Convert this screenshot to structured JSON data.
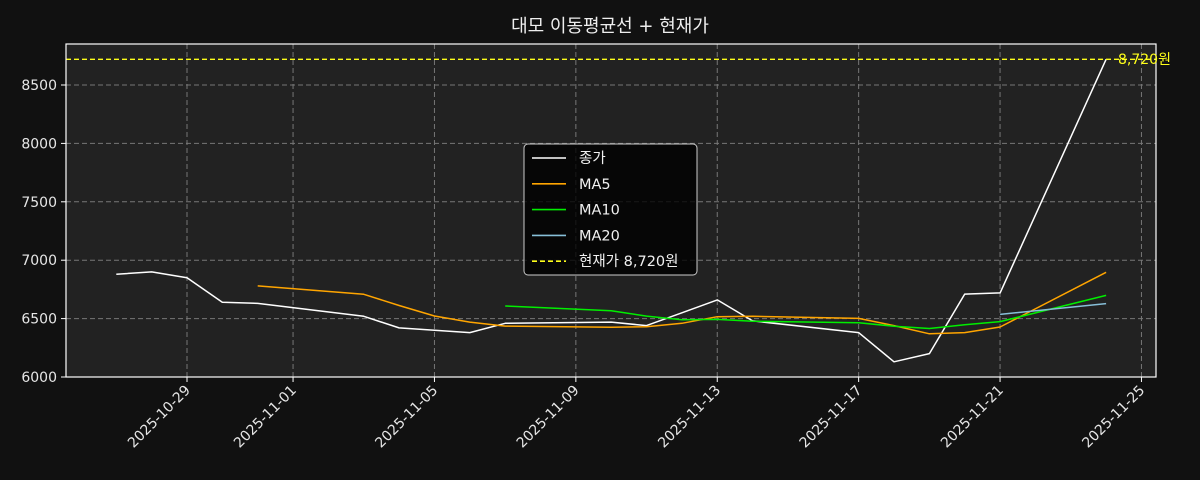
{
  "chart_data": {
    "type": "line",
    "title": "대모 이동평균선 + 현재가",
    "xlabel": "",
    "ylabel": "",
    "ylim": [
      5995,
      8850
    ],
    "xlim": [
      "2025-10-23",
      "2025-11-25"
    ],
    "grid": true,
    "legend_position": "center",
    "yticks": [
      6000,
      6500,
      7000,
      7500,
      8000,
      8500
    ],
    "xticks": [
      "2025-10-29",
      "2025-11-01",
      "2025-11-05",
      "2025-11-09",
      "2025-11-13",
      "2025-11-17",
      "2025-11-21",
      "2025-11-25"
    ],
    "x": [
      "2025-10-27",
      "2025-10-28",
      "2025-10-29",
      "2025-10-30",
      "2025-10-31",
      "2025-11-03",
      "2025-11-04",
      "2025-11-05",
      "2025-11-06",
      "2025-11-07",
      "2025-11-10",
      "2025-11-11",
      "2025-11-12",
      "2025-11-13",
      "2025-11-14",
      "2025-11-17",
      "2025-11-18",
      "2025-11-19",
      "2025-11-20",
      "2025-11-21",
      "2025-11-24"
    ],
    "series": [
      {
        "name": "종가",
        "color": "#ffffff",
        "values": [
          6880,
          6900,
          6850,
          6640,
          6630,
          6520,
          6420,
          6400,
          6380,
          6460,
          6470,
          6440,
          6550,
          6660,
          6480,
          6380,
          6130,
          6200,
          6710,
          6720,
          8720
        ]
      },
      {
        "name": "MA5",
        "color": "#ffa500",
        "values": [
          null,
          null,
          null,
          null,
          6780,
          6708,
          6612,
          6522,
          6470,
          6436,
          6426,
          6430,
          6460,
          6516,
          6520,
          6502,
          6440,
          6370,
          6380,
          6428,
          6896
        ]
      },
      {
        "name": "MA10",
        "color": "#00ee00",
        "values": [
          null,
          null,
          null,
          null,
          null,
          null,
          null,
          null,
          null,
          6608,
          6567,
          6521,
          6491,
          6493,
          6478,
          6464,
          6435,
          6415,
          6448,
          6474,
          6699
        ]
      },
      {
        "name": "MA20",
        "color": "#87bfd8",
        "values": [
          null,
          null,
          null,
          null,
          null,
          null,
          null,
          null,
          null,
          null,
          null,
          null,
          null,
          null,
          null,
          null,
          null,
          null,
          null,
          6536,
          6628
        ]
      }
    ],
    "hline": {
      "label": "현재가 8,720원",
      "value": 8720,
      "color": "#ffff1a",
      "style": "dashed"
    },
    "annotation": {
      "text": "8,720원",
      "value": 8720
    }
  },
  "legend": {
    "items": [
      {
        "label": "종가",
        "color": "#ffffff",
        "dashed": false
      },
      {
        "label": "MA5",
        "color": "#ffa500",
        "dashed": false
      },
      {
        "label": "MA10",
        "color": "#00ee00",
        "dashed": false
      },
      {
        "label": "MA20",
        "color": "#87bfd8",
        "dashed": false
      },
      {
        "label": "현재가 8,720원",
        "color": "#ffff1a",
        "dashed": true
      }
    ]
  },
  "colors": {
    "figure_bg": "#111111",
    "axes_bg": "#222222",
    "grid": "#777777",
    "spine": "#ffffff",
    "legend_bg": "#000000",
    "legend_border": "#cccccc"
  }
}
